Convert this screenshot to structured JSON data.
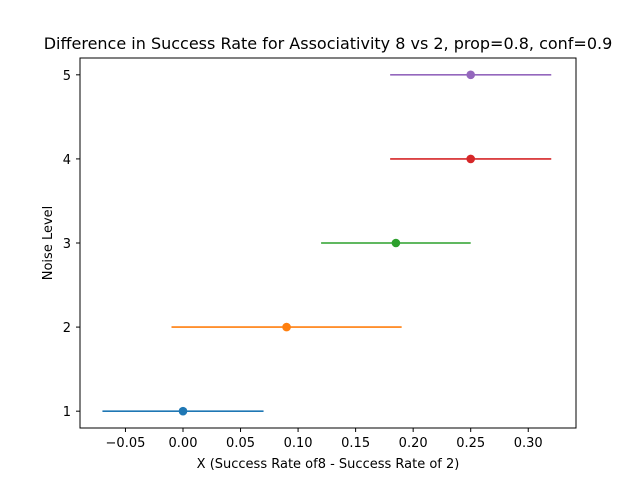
{
  "chart_data": {
    "type": "scatter",
    "title": "Difference in Success Rate for Associativity 8 vs 2, prop=0.8, conf=0.9",
    "xlabel": "X (Success Rate of8 - Success Rate of 2)",
    "ylabel": "Noise Level",
    "xlim": [
      -0.0895,
      0.3415
    ],
    "ylim": [
      0.8,
      5.2
    ],
    "x_ticks": [
      -0.05,
      0.0,
      0.05,
      0.1,
      0.15,
      0.2,
      0.25,
      0.3
    ],
    "x_tick_labels": [
      "−0.05",
      "0.00",
      "0.05",
      "0.10",
      "0.15",
      "0.20",
      "0.25",
      "0.30"
    ],
    "y_ticks": [
      1,
      2,
      3,
      4,
      5
    ],
    "y_tick_labels": [
      "1",
      "2",
      "3",
      "4",
      "5"
    ],
    "grid": false,
    "series": [
      {
        "y": 1,
        "x": 0.0,
        "low": -0.07,
        "high": 0.07,
        "color": "#1f77b4"
      },
      {
        "y": 2,
        "x": 0.09,
        "low": -0.01,
        "high": 0.19,
        "color": "#ff7f0e"
      },
      {
        "y": 3,
        "x": 0.185,
        "low": 0.12,
        "high": 0.25,
        "color": "#2ca02c"
      },
      {
        "y": 4,
        "x": 0.25,
        "low": 0.18,
        "high": 0.32,
        "color": "#d62728"
      },
      {
        "y": 5,
        "x": 0.25,
        "low": 0.18,
        "high": 0.32,
        "color": "#9467bd"
      }
    ]
  }
}
